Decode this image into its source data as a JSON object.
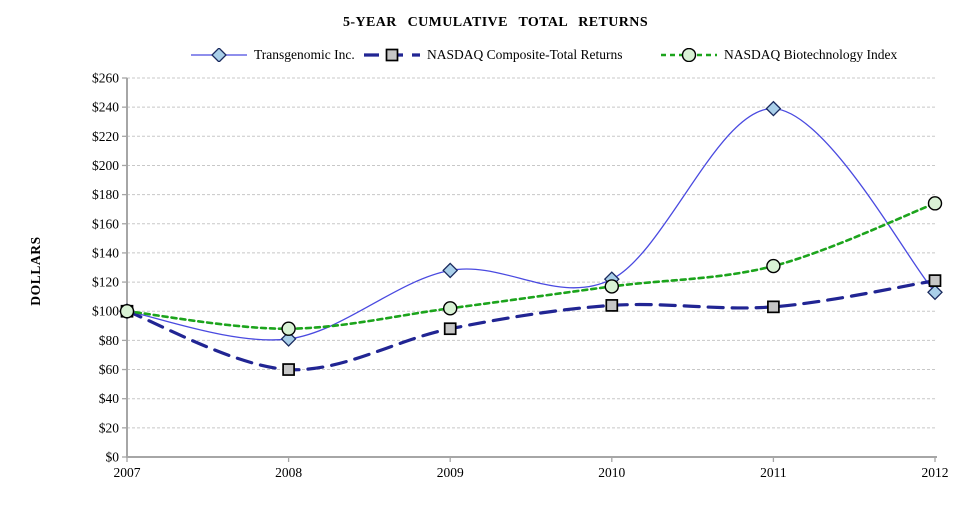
{
  "page": {
    "background": "#ffffff"
  },
  "chart_data": {
    "type": "line",
    "title": "5-YEAR CUMULATIVE TOTAL RETURNS",
    "ylabel": "DOLLARS",
    "xlabel": "",
    "x": [
      "2007",
      "2008",
      "2009",
      "2010",
      "2011",
      "2012"
    ],
    "series": [
      {
        "name": "Transgenomic Inc.",
        "values": [
          100,
          81,
          128,
          122,
          239,
          113
        ],
        "color": "#4a4ae0",
        "line_width": 1.3,
        "dash": "",
        "marker": "diamond",
        "marker_fill": "#a9cfe9",
        "marker_stroke": "#1a2a5e"
      },
      {
        "name": "NASDAQ Composite-Total Returns",
        "values": [
          100,
          60,
          88,
          104,
          103,
          121
        ],
        "color": "#212593",
        "line_width": 3.2,
        "dash": "15 9",
        "marker": "square",
        "marker_fill": "#c6c6c6",
        "marker_stroke": "#000000"
      },
      {
        "name": "NASDAQ Biotechnology Index",
        "values": [
          100,
          88,
          102,
          117,
          131,
          174
        ],
        "color": "#1ca41c",
        "line_width": 2.6,
        "dash": "5 4",
        "marker": "circle",
        "marker_fill": "#d9f2d5",
        "marker_stroke": "#000000"
      }
    ],
    "ylim": [
      0,
      260
    ],
    "y_tick_step": 20,
    "y_tick_prefix": "$",
    "grid": "horizontal dashed",
    "legend_position": "top",
    "smoothed": true
  },
  "colors": {
    "gridline": "#c8c8c8",
    "axis": "#a6a6a6",
    "text": "#000000"
  }
}
